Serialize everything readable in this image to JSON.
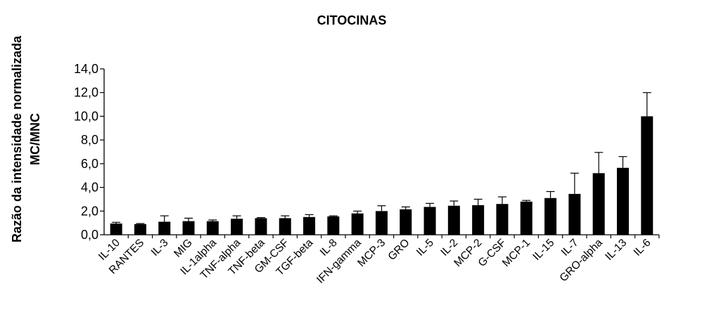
{
  "chart_data": {
    "type": "bar",
    "title": "CITOCINAS",
    "xlabel": "",
    "ylabel_lines": [
      "Razão da intensidade normalizada",
      "MC/MNC"
    ],
    "ylim": [
      0,
      14
    ],
    "yticks": [
      "0,0",
      "2,0",
      "4,0",
      "6,0",
      "8,0",
      "10,0",
      "12,0",
      "14,0"
    ],
    "grid": false,
    "legend": "none",
    "bar_color": "#000000",
    "categories": [
      "IL-10",
      "RANTES",
      "IL-3",
      "MIG",
      "IL-1alpha",
      "TNF-alpha",
      "TNF-beta",
      "GM-CSF",
      "TGF-beta",
      "IL-8",
      "IFN-gamma",
      "MCP-3",
      "GRO",
      "IL-5",
      "IL-2",
      "MCP-2",
      "G-CSF",
      "MCP-1",
      "IL-15",
      "IL-7",
      "GRO-alpha",
      "IL-13",
      "IL-6"
    ],
    "values": [
      0.95,
      0.9,
      1.1,
      1.15,
      1.15,
      1.35,
      1.4,
      1.4,
      1.5,
      1.55,
      1.8,
      2.0,
      2.15,
      2.35,
      2.45,
      2.5,
      2.6,
      2.8,
      3.1,
      3.45,
      5.2,
      5.65,
      10.0
    ],
    "error_upper": [
      0.1,
      0.05,
      0.5,
      0.25,
      0.1,
      0.25,
      0.05,
      0.2,
      0.2,
      0.05,
      0.2,
      0.45,
      0.2,
      0.3,
      0.4,
      0.5,
      0.6,
      0.1,
      0.55,
      1.75,
      1.75,
      0.95,
      2.0
    ]
  }
}
